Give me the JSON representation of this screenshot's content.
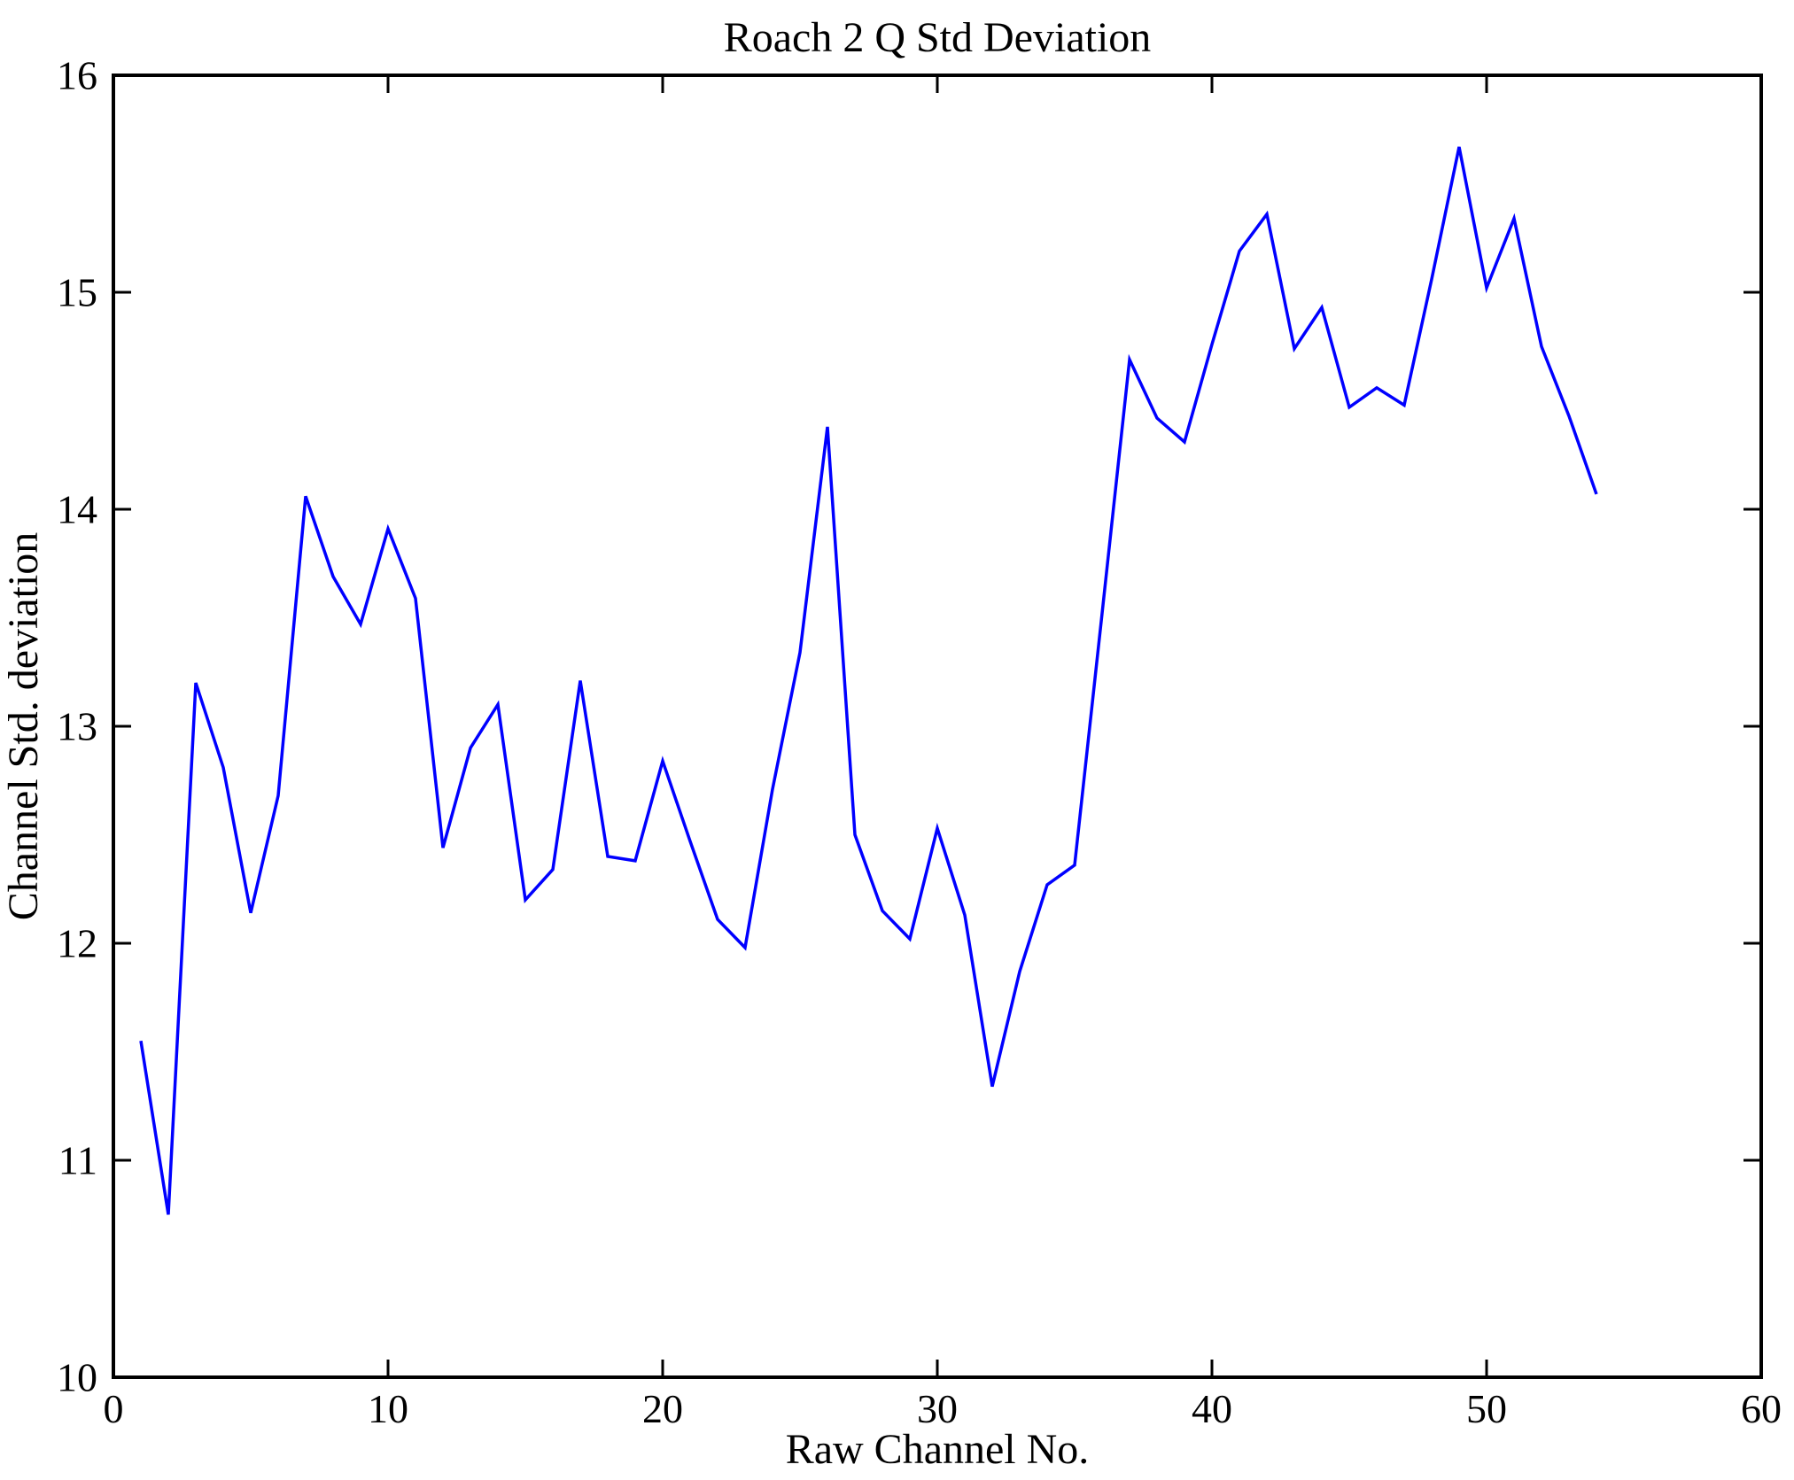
{
  "title": "Roach 2 Q Std Deviation",
  "chart_data": {
    "type": "line",
    "title": "Roach 2 Q Std Deviation",
    "xlabel": "Raw Channel No.",
    "ylabel": "Channel Std. deviation",
    "xlim": [
      0,
      60
    ],
    "ylim": [
      10,
      16
    ],
    "x_ticks": [
      0,
      10,
      20,
      30,
      40,
      50,
      60
    ],
    "y_ticks": [
      10,
      11,
      12,
      13,
      14,
      15,
      16
    ],
    "grid": false,
    "legend_position": "none",
    "line_color": "#0000FF",
    "axis_color": "#000000",
    "background_color": "#FFFFFF",
    "series": [
      {
        "name": "Channel Std. deviation vs Raw Channel No.",
        "x": [
          1,
          2,
          3,
          4,
          5,
          6,
          7,
          8,
          9,
          10,
          11,
          12,
          13,
          14,
          15,
          16,
          17,
          18,
          19,
          20,
          21,
          22,
          23,
          24,
          25,
          26,
          27,
          28,
          29,
          30,
          31,
          32,
          33,
          34,
          35,
          36,
          37,
          38,
          39,
          40,
          41,
          42,
          43,
          44,
          45,
          46,
          47,
          48,
          49,
          50,
          51,
          52,
          53,
          54
        ],
        "values": [
          11.55,
          10.75,
          13.2,
          12.81,
          12.14,
          12.68,
          14.06,
          13.69,
          13.47,
          13.91,
          13.59,
          12.44,
          12.9,
          13.1,
          12.2,
          12.34,
          13.21,
          12.4,
          12.38,
          12.84,
          12.47,
          12.11,
          11.98,
          12.71,
          13.34,
          14.38,
          12.5,
          12.15,
          12.02,
          12.53,
          12.13,
          11.34,
          11.87,
          12.27,
          12.36,
          13.52,
          14.69,
          14.42,
          14.31,
          14.76,
          15.19,
          15.36,
          14.74,
          14.93,
          14.47,
          14.56,
          14.48,
          15.06,
          15.67,
          15.02,
          15.34,
          14.75,
          14.43,
          14.07
        ]
      }
    ]
  }
}
